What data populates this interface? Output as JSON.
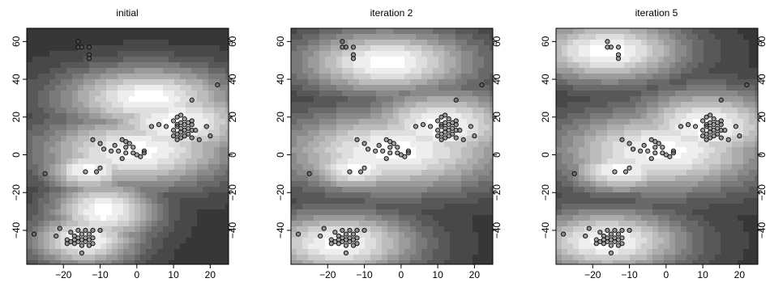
{
  "chart_data": [
    {
      "type": "scatter",
      "title": "initial",
      "xlim": [
        -30,
        25
      ],
      "ylim": [
        -58,
        67
      ],
      "x_ticks": [
        -20,
        -10,
        0,
        10,
        20
      ],
      "y_ticks": [
        -40,
        -20,
        0,
        20,
        40,
        60
      ],
      "background": "grayscale filled-contour density (light = high density)",
      "density_peaks": [
        {
          "x": 3,
          "y": 30,
          "sx": 10,
          "sy": 7
        },
        {
          "x": 0,
          "y": 2,
          "sx": 11,
          "sy": 8
        },
        {
          "x": -13,
          "y": -8,
          "sx": 5,
          "sy": 5
        },
        {
          "x": -9,
          "y": -30,
          "sx": 6,
          "sy": 7
        },
        {
          "x": 11,
          "y": 17,
          "sx": 9,
          "sy": 8
        },
        {
          "x": -14,
          "y": -45,
          "sx": 6,
          "sy": 6
        }
      ]
    },
    {
      "type": "scatter",
      "title": "iteration 2",
      "xlim": [
        -30,
        25
      ],
      "ylim": [
        -58,
        67
      ],
      "x_ticks": [
        -20,
        -10,
        0,
        10,
        20
      ],
      "y_ticks": [
        -40,
        -20,
        0,
        20,
        40,
        60
      ],
      "background": "grayscale filled-contour density (light = high density)",
      "density_peaks": [
        {
          "x": -4,
          "y": 49,
          "sx": 10,
          "sy": 7
        },
        {
          "x": -2,
          "y": 2,
          "sx": 13,
          "sy": 9
        },
        {
          "x": -12,
          "y": -7,
          "sx": 6,
          "sy": 5
        },
        {
          "x": 11,
          "y": 15,
          "sx": 9,
          "sy": 8
        },
        {
          "x": -17,
          "y": -47,
          "sx": 9,
          "sy": 7
        }
      ]
    },
    {
      "type": "scatter",
      "title": "iteration 5",
      "xlim": [
        -30,
        25
      ],
      "ylim": [
        -58,
        67
      ],
      "x_ticks": [
        -20,
        -10,
        0,
        10,
        20
      ],
      "y_ticks": [
        -40,
        -20,
        0,
        20,
        40,
        60
      ],
      "background": "grayscale filled-contour density (light = high density)",
      "density_peaks": [
        {
          "x": -16,
          "y": 55,
          "sx": 9,
          "sy": 7
        },
        {
          "x": -1,
          "y": 2,
          "sx": 12,
          "sy": 9
        },
        {
          "x": -12,
          "y": -8,
          "sx": 6,
          "sy": 5
        },
        {
          "x": 11,
          "y": 15,
          "sx": 9,
          "sy": 8
        },
        {
          "x": -16,
          "y": -46,
          "sx": 9,
          "sy": 7
        }
      ]
    }
  ],
  "points": [
    [
      -16,
      60
    ],
    [
      -16,
      57
    ],
    [
      -15,
      57
    ],
    [
      -13,
      57
    ],
    [
      -13,
      53
    ],
    [
      -13,
      51
    ],
    [
      22,
      37
    ],
    [
      15,
      29
    ],
    [
      12,
      21
    ],
    [
      11,
      20
    ],
    [
      13,
      19
    ],
    [
      15,
      18
    ],
    [
      10,
      18
    ],
    [
      12,
      17
    ],
    [
      14,
      17
    ],
    [
      11,
      16
    ],
    [
      13,
      16
    ],
    [
      15,
      16
    ],
    [
      8,
      15
    ],
    [
      11,
      15
    ],
    [
      12,
      14
    ],
    [
      14,
      14
    ],
    [
      10,
      13
    ],
    [
      13,
      13
    ],
    [
      15,
      13
    ],
    [
      16,
      13
    ],
    [
      12,
      12
    ],
    [
      11,
      11
    ],
    [
      14,
      11
    ],
    [
      10,
      10
    ],
    [
      13,
      10
    ],
    [
      12,
      9
    ],
    [
      15,
      9
    ],
    [
      11,
      8
    ],
    [
      17,
      8
    ],
    [
      19,
      15
    ],
    [
      20,
      10
    ],
    [
      6,
      16
    ],
    [
      4,
      15
    ],
    [
      -12,
      8
    ],
    [
      -4,
      8
    ],
    [
      -3,
      7
    ],
    [
      -10,
      6
    ],
    [
      -2,
      6
    ],
    [
      -6,
      5
    ],
    [
      -9,
      3
    ],
    [
      -3,
      4
    ],
    [
      -1,
      4
    ],
    [
      -7,
      2
    ],
    [
      -5,
      2
    ],
    [
      -3,
      1
    ],
    [
      -1,
      1
    ],
    [
      2,
      2
    ],
    [
      2,
      1
    ],
    [
      0,
      0
    ],
    [
      -4,
      -2
    ],
    [
      1,
      -1
    ],
    [
      -10,
      -7
    ],
    [
      -11,
      -9
    ],
    [
      -14,
      -9
    ],
    [
      -25,
      -10
    ],
    [
      -16,
      -40
    ],
    [
      -14,
      -40
    ],
    [
      -12,
      -40
    ],
    [
      -10,
      -40
    ],
    [
      -18,
      -41
    ],
    [
      -15,
      -42
    ],
    [
      -13,
      -42
    ],
    [
      -17,
      -43
    ],
    [
      -16,
      -44
    ],
    [
      -14,
      -44
    ],
    [
      -12,
      -44
    ],
    [
      -19,
      -45
    ],
    [
      -17,
      -45
    ],
    [
      -15,
      -45
    ],
    [
      -13,
      -45
    ],
    [
      -18,
      -46
    ],
    [
      -16,
      -46
    ],
    [
      -14,
      -46
    ],
    [
      -19,
      -47
    ],
    [
      -17,
      -47
    ],
    [
      -12,
      -47
    ],
    [
      -15,
      -48
    ],
    [
      -13,
      -48
    ],
    [
      -21,
      -39
    ],
    [
      -22,
      -43
    ],
    [
      -28,
      -42
    ],
    [
      -15,
      -52
    ]
  ]
}
